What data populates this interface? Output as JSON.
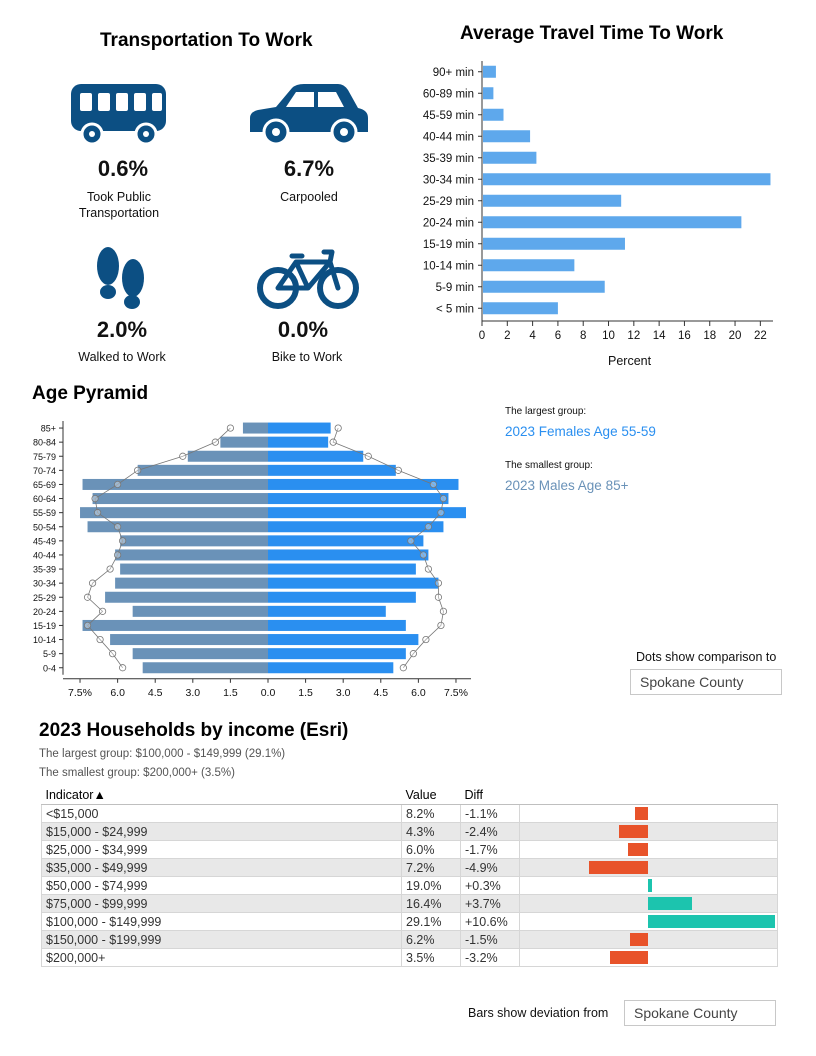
{
  "transport": {
    "title": "Transportation To Work",
    "items": [
      {
        "icon": "bus-icon",
        "value": "0.6%",
        "label": "Took Public Transportation"
      },
      {
        "icon": "car-icon",
        "value": "6.7%",
        "label": "Carpooled"
      },
      {
        "icon": "footprints-icon",
        "value": "2.0%",
        "label": "Walked to Work"
      },
      {
        "icon": "bicycle-icon",
        "value": "0.0%",
        "label": "Bike to Work"
      }
    ],
    "icon_color": "#0c4f83"
  },
  "travel": {
    "title": "Average Travel Time To Work",
    "xlabel": "Percent"
  },
  "pyramid": {
    "title": "Age Pyramid",
    "largest_label": "The largest group:",
    "largest_value": "2023 Females Age 55-59",
    "smallest_label": "The smallest group:",
    "smallest_value": "2023 Males Age 85+",
    "compare_label": "Dots show comparison to",
    "compare_value": "Spokane County"
  },
  "income": {
    "title": "2023 Households by income (Esri)",
    "largest": "The largest group: $100,000 - $149,999 (29.1%)",
    "smallest": "The smallest group: $200,000+ (3.5%)",
    "headers": {
      "indicator": "Indicator▲",
      "value": "Value",
      "diff": "Diff"
    },
    "rows": [
      {
        "indicator": "<$15,000",
        "value": "8.2%",
        "diff": "-1.1%",
        "d": -1.1
      },
      {
        "indicator": "$15,000 - $24,999",
        "value": "4.3%",
        "diff": "-2.4%",
        "d": -2.4
      },
      {
        "indicator": "$25,000 - $34,999",
        "value": "6.0%",
        "diff": "-1.7%",
        "d": -1.7
      },
      {
        "indicator": "$35,000 - $49,999",
        "value": "7.2%",
        "diff": "-4.9%",
        "d": -4.9
      },
      {
        "indicator": "$50,000 - $74,999",
        "value": "19.0%",
        "diff": "+0.3%",
        "d": 0.3
      },
      {
        "indicator": "$75,000 - $99,999",
        "value": "16.4%",
        "diff": "+3.7%",
        "d": 3.7
      },
      {
        "indicator": "$100,000 - $149,999",
        "value": "29.1%",
        "diff": "+10.6%",
        "d": 10.6
      },
      {
        "indicator": "$150,000 - $199,999",
        "value": "6.2%",
        "diff": "-1.5%",
        "d": -1.5
      },
      {
        "indicator": "$200,000+",
        "value": "3.5%",
        "diff": "-3.2%",
        "d": -3.2
      }
    ],
    "deviation_label": "Bars show deviation from",
    "deviation_value": "Spokane County",
    "colors": {
      "negative": "#e8532a",
      "positive": "#1cc4ae"
    }
  },
  "chart_data": [
    {
      "type": "bar",
      "orientation": "horizontal",
      "title": "Average Travel Time To Work",
      "xlabel": "Percent",
      "categories": [
        "< 5 min",
        "5-9 min",
        "10-14 min",
        "15-19 min",
        "20-24 min",
        "25-29 min",
        "30-34 min",
        "35-39 min",
        "40-44 min",
        "45-59 min",
        "60-89 min",
        "90+ min"
      ],
      "values": [
        6.0,
        9.7,
        7.3,
        11.3,
        20.5,
        11.0,
        22.8,
        4.3,
        3.8,
        1.7,
        0.9,
        1.1
      ],
      "xlim": [
        0,
        23
      ],
      "xticks": [
        "0",
        "2",
        "4",
        "6",
        "8",
        "10",
        "12",
        "14",
        "16",
        "18",
        "20",
        "22"
      ],
      "color": "#5ea8ec"
    },
    {
      "type": "bar",
      "orientation": "horizontal-diverging",
      "title": "Age Pyramid",
      "categories": [
        "0-4",
        "5-9",
        "10-14",
        "15-19",
        "20-24",
        "25-29",
        "30-34",
        "35-39",
        "40-44",
        "45-49",
        "50-54",
        "55-59",
        "60-64",
        "65-69",
        "70-74",
        "75-79",
        "80-84",
        "85+"
      ],
      "series": [
        {
          "values": [
            5.0,
            5.4,
            6.3,
            7.4,
            5.4,
            6.5,
            6.1,
            5.9,
            6.1,
            5.9,
            7.2,
            7.5,
            7.0,
            7.4,
            5.2,
            3.2,
            1.9,
            1.0
          ],
          "comparison": [
            5.8,
            6.2,
            6.7,
            7.2,
            6.6,
            7.2,
            7.0,
            6.3,
            6.0,
            5.8,
            6.0,
            6.8,
            6.9,
            6.0,
            5.2,
            3.4,
            2.1,
            1.5
          ],
          "color": "#6a92b8"
        },
        {
          "values": [
            5.0,
            5.5,
            6.0,
            5.5,
            4.7,
            5.9,
            6.8,
            5.9,
            6.4,
            6.2,
            7.0,
            7.9,
            7.2,
            7.6,
            5.1,
            3.8,
            2.4,
            2.5
          ],
          "comparison": [
            5.4,
            5.8,
            6.3,
            6.9,
            7.0,
            6.8,
            6.8,
            6.4,
            6.2,
            5.7,
            6.4,
            6.9,
            7.0,
            6.6,
            5.2,
            4.0,
            2.6,
            2.8
          ],
          "color": "#2a8ff0"
        }
      ],
      "xticks": [
        "7.5%",
        "6.0",
        "4.5",
        "3.0",
        "1.5",
        "0.0",
        "1.5",
        "3.0",
        "4.5",
        "6.0",
        "7.5%"
      ],
      "xlim": [
        -7.9,
        7.9
      ]
    },
    {
      "type": "bar",
      "orientation": "horizontal-diverging",
      "title": "2023 Households by income (Esri)",
      "categories": [
        "<$15,000",
        "$15,000 - $24,999",
        "$25,000 - $34,999",
        "$35,000 - $49,999",
        "$50,000 - $74,999",
        "$75,000 - $99,999",
        "$100,000 - $149,999",
        "$150,000 - $199,999",
        "$200,000+"
      ],
      "values": [
        -1.1,
        -2.4,
        -1.7,
        -4.9,
        0.3,
        3.7,
        10.6,
        -1.5,
        -3.2
      ]
    }
  ]
}
